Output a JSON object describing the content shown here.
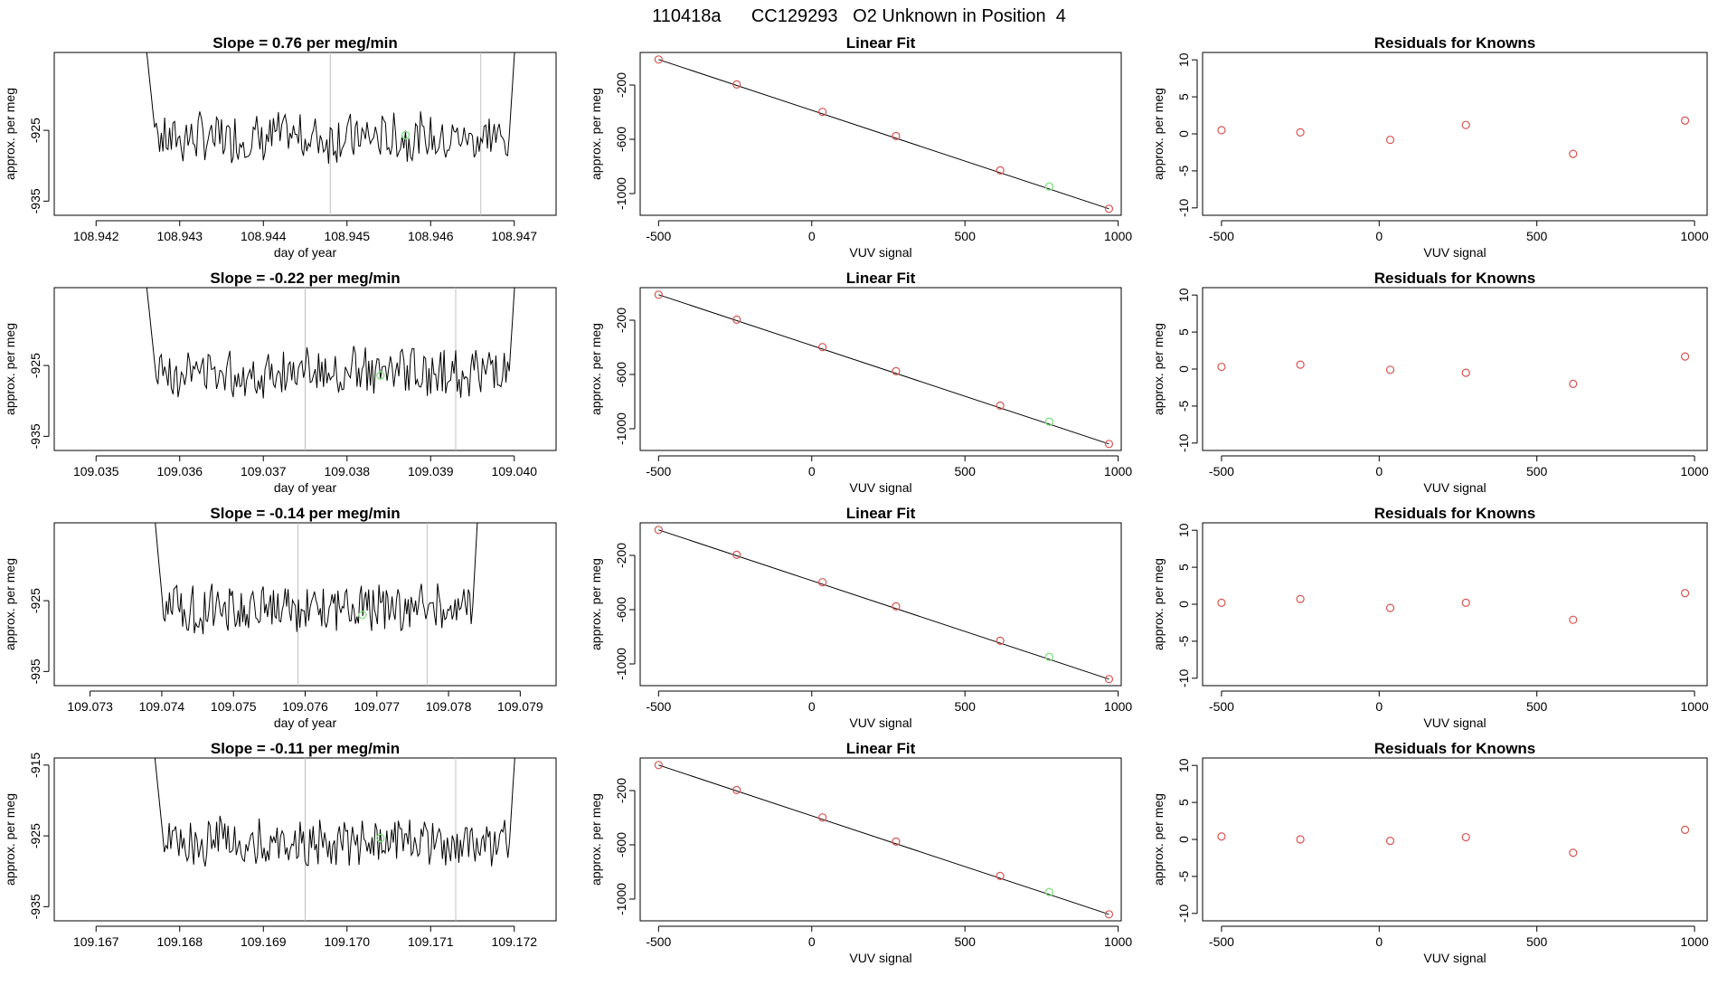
{
  "figure_title": "110418a      CC129293   O2 Unknown in Position  4",
  "colors": {
    "line": "#000000",
    "known_point": "#d9534f",
    "unknown_point": "#7ee37e",
    "vline": "#c0c0c0"
  },
  "chart_data": [
    {
      "row": 0,
      "col": 0,
      "type": "line",
      "title": "Slope =  0.76  per meg/min",
      "xlabel": "day of year",
      "ylabel": "approx. per meg",
      "xlim": [
        108.9415,
        108.9475
      ],
      "ylim": [
        -937,
        -914
      ],
      "xticks": [
        "108.942",
        "108.943",
        "108.944",
        "108.945",
        "108.946",
        "108.947"
      ],
      "yticks": [
        "-925",
        "-935"
      ],
      "trace_start": 108.9425,
      "trace_end": 108.9471,
      "seed": 7,
      "vlines": [
        108.9448,
        108.9466
      ],
      "unknown_point": {
        "x": 108.9457,
        "y": -925.7
      }
    },
    {
      "row": 0,
      "col": 1,
      "type": "scatter",
      "title": "Linear Fit",
      "xlabel": "VUV signal",
      "ylabel": "approx. per meg",
      "xlim": [
        -560,
        1010
      ],
      "ylim": [
        -1160,
        40
      ],
      "xticks": [
        "-500",
        "0",
        "500",
        "1000"
      ],
      "yticks": [
        "-200",
        "-600",
        "-1000"
      ],
      "fit_line": [
        [
          -500,
          -12
        ],
        [
          970,
          -1112
        ]
      ],
      "known_points": [
        [
          -500,
          -12
        ],
        [
          -245,
          -196
        ],
        [
          35,
          -398
        ],
        [
          275,
          -576
        ],
        [
          615,
          -829
        ],
        [
          970,
          -1112
        ]
      ],
      "unknown_point": [
        775,
        -948
      ]
    },
    {
      "row": 0,
      "col": 2,
      "type": "scatter",
      "title": "Residuals for Knowns",
      "xlabel": "VUV signal",
      "ylabel": "approx. per meg",
      "xlim": [
        -560,
        1040
      ],
      "ylim": [
        -11,
        11
      ],
      "xticks": [
        "-500",
        "0",
        "500",
        "1000"
      ],
      "yticks": [
        "10",
        "5",
        "0",
        "-5",
        "-10"
      ],
      "points": [
        [
          -500,
          0.5
        ],
        [
          -250,
          0.2
        ],
        [
          35,
          -0.8
        ],
        [
          275,
          1.2
        ],
        [
          615,
          -2.7
        ],
        [
          970,
          1.8
        ]
      ]
    },
    {
      "row": 1,
      "col": 0,
      "type": "line",
      "title": "Slope =  -0.22  per meg/min",
      "xlabel": "day of year",
      "ylabel": "approx. per meg",
      "xlim": [
        109.0345,
        109.0405
      ],
      "ylim": [
        -937,
        -914
      ],
      "xticks": [
        "109.035",
        "109.036",
        "109.037",
        "109.038",
        "109.039",
        "109.040"
      ],
      "yticks": [
        "-925",
        "-935"
      ],
      "trace_start": 109.0355,
      "trace_end": 109.0401,
      "seed": 13,
      "vlines": [
        109.0375,
        109.0393
      ],
      "unknown_point": {
        "x": 109.0384,
        "y": -926.4
      }
    },
    {
      "row": 1,
      "col": 1,
      "type": "scatter",
      "title": "Linear Fit",
      "xlabel": "VUV signal",
      "ylabel": "approx. per meg",
      "xlim": [
        -560,
        1010
      ],
      "ylim": [
        -1160,
        40
      ],
      "xticks": [
        "-500",
        "0",
        "500",
        "1000"
      ],
      "yticks": [
        "-200",
        "-600",
        "-1000"
      ],
      "fit_line": [
        [
          -500,
          -12
        ],
        [
          970,
          -1112
        ]
      ],
      "known_points": [
        [
          -500,
          -12
        ],
        [
          -245,
          -196
        ],
        [
          35,
          -398
        ],
        [
          275,
          -576
        ],
        [
          615,
          -829
        ],
        [
          970,
          -1112
        ]
      ],
      "unknown_point": [
        775,
        -948
      ]
    },
    {
      "row": 1,
      "col": 2,
      "type": "scatter",
      "title": "Residuals for Knowns",
      "xlabel": "VUV signal",
      "ylabel": "approx. per meg",
      "xlim": [
        -560,
        1040
      ],
      "ylim": [
        -11,
        11
      ],
      "xticks": [
        "-500",
        "0",
        "500",
        "1000"
      ],
      "yticks": [
        "10",
        "5",
        "0",
        "-5",
        "-10"
      ],
      "points": [
        [
          -500,
          0.3
        ],
        [
          -250,
          0.6
        ],
        [
          35,
          -0.1
        ],
        [
          275,
          -0.5
        ],
        [
          615,
          -2.0
        ],
        [
          970,
          1.7
        ]
      ]
    },
    {
      "row": 2,
      "col": 0,
      "type": "line",
      "title": "Slope =  -0.14  per meg/min",
      "xlabel": "day of year",
      "ylabel": "approx. per meg",
      "xlim": [
        109.0725,
        109.0795
      ],
      "ylim": [
        -937,
        -914
      ],
      "xticks": [
        "109.073",
        "109.074",
        "109.075",
        "109.076",
        "109.077",
        "109.078",
        "109.079"
      ],
      "yticks": [
        "-925",
        "-935"
      ],
      "trace_start": 109.0738,
      "trace_end": 109.0785,
      "seed": 21,
      "vlines": [
        109.0759,
        109.0777
      ],
      "unknown_point": {
        "x": 109.0768,
        "y": -927.0
      }
    },
    {
      "row": 2,
      "col": 1,
      "type": "scatter",
      "title": "Linear Fit",
      "xlabel": "VUV signal",
      "ylabel": "approx. per meg",
      "xlim": [
        -560,
        1010
      ],
      "ylim": [
        -1160,
        40
      ],
      "xticks": [
        "-500",
        "0",
        "500",
        "1000"
      ],
      "yticks": [
        "-200",
        "-600",
        "-1000"
      ],
      "fit_line": [
        [
          -500,
          -12
        ],
        [
          970,
          -1112
        ]
      ],
      "known_points": [
        [
          -500,
          -12
        ],
        [
          -245,
          -196
        ],
        [
          35,
          -398
        ],
        [
          275,
          -576
        ],
        [
          615,
          -829
        ],
        [
          970,
          -1112
        ]
      ],
      "unknown_point": [
        775,
        -948
      ]
    },
    {
      "row": 2,
      "col": 2,
      "type": "scatter",
      "title": "Residuals for Knowns",
      "xlabel": "VUV signal",
      "ylabel": "approx. per meg",
      "xlim": [
        -560,
        1040
      ],
      "ylim": [
        -11,
        11
      ],
      "xticks": [
        "-500",
        "0",
        "500",
        "1000"
      ],
      "yticks": [
        "10",
        "5",
        "0",
        "-5",
        "-10"
      ],
      "points": [
        [
          -500,
          0.2
        ],
        [
          -250,
          0.7
        ],
        [
          35,
          -0.5
        ],
        [
          275,
          0.2
        ],
        [
          615,
          -2.1
        ],
        [
          970,
          1.5
        ]
      ]
    },
    {
      "row": 3,
      "col": 0,
      "type": "line",
      "title": "Slope =  -0.11  per meg/min",
      "xlabel": "",
      "ylabel": "approx. per meg",
      "xlim": [
        109.1665,
        109.1725
      ],
      "ylim": [
        -937,
        -914
      ],
      "xticks": [
        "109.167",
        "109.168",
        "109.169",
        "109.170",
        "109.171",
        "109.172"
      ],
      "yticks": [
        "-915",
        "-925",
        "-935"
      ],
      "trace_start": 109.1676,
      "trace_end": 109.1721,
      "seed": 33,
      "vlines": [
        109.1695,
        109.1713
      ],
      "unknown_point": {
        "x": 109.1704,
        "y": -925.3
      }
    },
    {
      "row": 3,
      "col": 1,
      "type": "scatter",
      "title": "Linear Fit",
      "xlabel": "VUV signal",
      "ylabel": "approx. per meg",
      "xlim": [
        -560,
        1010
      ],
      "ylim": [
        -1160,
        40
      ],
      "xticks": [
        "-500",
        "0",
        "500",
        "1000"
      ],
      "yticks": [
        "-200",
        "-600",
        "-1000"
      ],
      "fit_line": [
        [
          -500,
          -12
        ],
        [
          970,
          -1112
        ]
      ],
      "known_points": [
        [
          -500,
          -12
        ],
        [
          -245,
          -196
        ],
        [
          35,
          -398
        ],
        [
          275,
          -576
        ],
        [
          615,
          -829
        ],
        [
          970,
          -1112
        ]
      ],
      "unknown_point": [
        775,
        -948
      ]
    },
    {
      "row": 3,
      "col": 2,
      "type": "scatter",
      "title": "Residuals for Knowns",
      "xlabel": "VUV signal",
      "ylabel": "approx. per meg",
      "xlim": [
        -560,
        1040
      ],
      "ylim": [
        -11,
        11
      ],
      "xticks": [
        "-500",
        "0",
        "500",
        "1000"
      ],
      "yticks": [
        "10",
        "5",
        "0",
        "-5",
        "-10"
      ],
      "points": [
        [
          -500,
          0.4
        ],
        [
          -250,
          0.0
        ],
        [
          35,
          -0.2
        ],
        [
          275,
          0.3
        ],
        [
          615,
          -1.8
        ],
        [
          970,
          1.3
        ]
      ]
    }
  ]
}
